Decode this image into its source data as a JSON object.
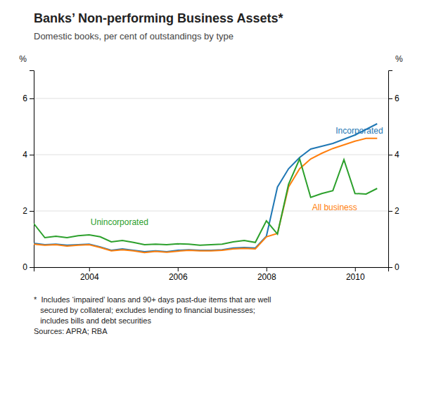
{
  "chart_data": {
    "type": "line",
    "title": "Banks’ Non-performing Business Assets*",
    "subtitle": "Domestic books, per cent of outstandings by type",
    "y_label": "%",
    "y2_label": "%",
    "footnote": "*  Includes ‘impaired’ loans and 90+ days past-due items that are well\n   secured by collateral; excludes lending to financial businesses;\n   includes bills and debt securities\nSources: APRA; RBA",
    "x": [
      2002.75,
      2003.0,
      2003.25,
      2003.5,
      2003.75,
      2004.0,
      2004.25,
      2004.5,
      2004.75,
      2005.0,
      2005.25,
      2005.5,
      2005.75,
      2006.0,
      2006.25,
      2006.5,
      2006.75,
      2007.0,
      2007.25,
      2007.5,
      2007.75,
      2008.0,
      2008.25,
      2008.5,
      2008.75,
      2009.0,
      2009.25,
      2009.5,
      2009.75,
      2010.0,
      2010.25,
      2010.5
    ],
    "series": [
      {
        "name": "Incorporated",
        "values": [
          0.85,
          0.8,
          0.82,
          0.78,
          0.8,
          0.82,
          0.72,
          0.6,
          0.65,
          0.6,
          0.55,
          0.58,
          0.55,
          0.6,
          0.62,
          0.6,
          0.6,
          0.62,
          0.68,
          0.7,
          0.68,
          1.1,
          2.85,
          3.5,
          3.9,
          4.2,
          4.3,
          4.4,
          4.55,
          4.7,
          4.9,
          5.1
        ]
      },
      {
        "name": "All business",
        "values": [
          0.82,
          0.78,
          0.8,
          0.75,
          0.78,
          0.8,
          0.7,
          0.58,
          0.62,
          0.58,
          0.52,
          0.56,
          0.53,
          0.57,
          0.6,
          0.58,
          0.58,
          0.6,
          0.65,
          0.67,
          0.65,
          1.08,
          1.2,
          2.85,
          3.5,
          3.85,
          4.05,
          4.22,
          4.35,
          4.48,
          4.58,
          4.58
        ]
      },
      {
        "name": "Unincorporated",
        "values": [
          1.55,
          1.05,
          1.1,
          1.05,
          1.12,
          1.15,
          1.08,
          0.9,
          0.95,
          0.88,
          0.8,
          0.82,
          0.8,
          0.83,
          0.82,
          0.78,
          0.8,
          0.82,
          0.9,
          0.95,
          0.88,
          1.65,
          1.18,
          2.95,
          3.85,
          2.48,
          2.62,
          2.72,
          3.82,
          2.62,
          2.6,
          2.8
        ]
      }
    ],
    "xlim": [
      2002.75,
      2010.75
    ],
    "xticks": [
      2004,
      2006,
      2008,
      2010
    ],
    "ylim": [
      0,
      7
    ],
    "yticks": [
      0,
      2,
      4,
      6
    ],
    "y2lim": [
      0,
      7
    ],
    "y2ticks": [
      0,
      2,
      4,
      6
    ],
    "grid": true
  }
}
